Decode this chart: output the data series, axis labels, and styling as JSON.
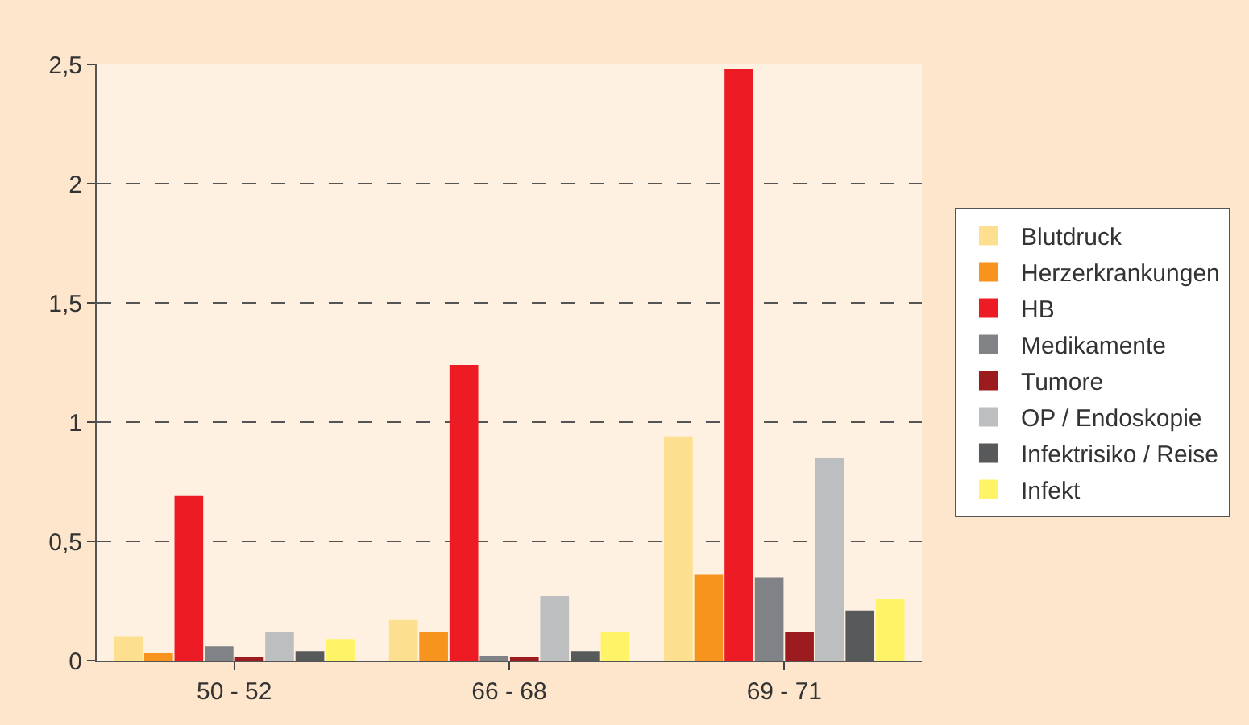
{
  "chart_data": {
    "type": "bar",
    "categories": [
      "50 - 52",
      "66 - 68",
      "69 - 71"
    ],
    "series": [
      {
        "name": "Blutdruck",
        "color": "#fde08f",
        "values": [
          0.1,
          0.17,
          0.94
        ]
      },
      {
        "name": "Herzerkrankungen",
        "color": "#f7941d",
        "values": [
          0.03,
          0.12,
          0.36
        ]
      },
      {
        "name": "HB",
        "color": "#ed1c24",
        "values": [
          0.69,
          1.24,
          2.48
        ]
      },
      {
        "name": "Medikamente",
        "color": "#808285",
        "values": [
          0.06,
          0.02,
          0.35
        ]
      },
      {
        "name": "Tumore",
        "color": "#9b1b1e",
        "values": [
          0.01,
          0.01,
          0.12
        ]
      },
      {
        "name": "OP / Endoskopie",
        "color": "#bcbec0",
        "values": [
          0.12,
          0.27,
          0.85
        ]
      },
      {
        "name": "Infektrisiko / Reise",
        "color": "#58595b",
        "values": [
          0.04,
          0.04,
          0.21
        ]
      },
      {
        "name": "Infekt",
        "color": "#fff467",
        "values": [
          0.09,
          0.12,
          0.26
        ]
      }
    ],
    "ylim": [
      0,
      2.5
    ],
    "yticks": [
      0,
      {
        "value": 0.5,
        "label": "0,5"
      },
      1,
      {
        "value": 1.5,
        "label": "1,5"
      },
      2,
      {
        "value": 2.5,
        "label": "2,5"
      }
    ],
    "grid": "y",
    "legend": "right"
  }
}
